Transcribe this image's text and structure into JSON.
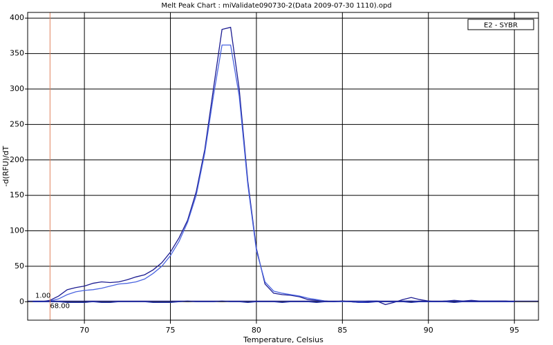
{
  "chart_data": {
    "type": "line",
    "title": "Melt Peak Chart : miValidate090730-2(Data 2009-07-30 1110).opd",
    "xlabel": "Temperature, Celsius",
    "ylabel": "-d(RFU)/dT",
    "legend": "E2 - SYBR",
    "legend_corner": "upper right",
    "grid": true,
    "xlim": [
      66.7,
      96.4
    ],
    "ylim": [
      -26,
      408
    ],
    "xticks": [
      70,
      75,
      80,
      85,
      90,
      95
    ],
    "yticks": [
      0,
      50,
      100,
      150,
      200,
      250,
      300,
      350,
      400
    ],
    "threshold": {
      "value": 1,
      "label": "1.00",
      "color": "#1c1c8c"
    },
    "marker": {
      "value": 68,
      "label": "68.00",
      "color": "#e0805a"
    },
    "x": [
      67,
      67.5,
      68,
      68.5,
      69,
      69.5,
      70,
      70.5,
      71,
      71.5,
      72,
      72.5,
      73,
      73.5,
      74,
      74.5,
      75,
      75.5,
      76,
      76.5,
      77,
      77.5,
      78,
      78.5,
      79,
      79.5,
      80,
      80.5,
      81,
      81.5,
      82,
      82.5,
      83,
      83.5,
      84,
      84.5,
      85,
      85.5,
      86,
      86.5,
      87,
      87.5,
      88,
      88.5,
      89,
      89.5,
      90,
      90.5,
      91,
      91.5,
      92,
      92.5,
      93,
      93.5,
      94,
      94.5,
      95
    ],
    "series": [
      {
        "color": "#1a1a90",
        "values": [
          0,
          0,
          2,
          8,
          17,
          20,
          22,
          26,
          28,
          27,
          28,
          31,
          35,
          38,
          45,
          55,
          70,
          90,
          115,
          155,
          215,
          300,
          384,
          387,
          300,
          170,
          75,
          25,
          12,
          10,
          9,
          7,
          3,
          2,
          1,
          0,
          1,
          0,
          -1,
          0,
          1,
          -4,
          -1,
          3,
          6,
          3,
          1,
          0,
          1,
          2,
          1,
          2,
          1,
          1,
          1,
          1,
          0
        ]
      },
      {
        "color": "#4a64e0",
        "values": [
          0,
          0,
          1,
          4,
          10,
          14,
          16,
          17,
          19,
          22,
          25,
          26,
          28,
          32,
          40,
          50,
          65,
          85,
          112,
          150,
          210,
          290,
          362,
          362,
          290,
          165,
          72,
          28,
          15,
          12,
          10,
          8,
          5,
          3,
          1,
          0,
          0,
          0,
          0,
          1,
          1,
          0,
          0,
          1,
          1,
          0,
          0,
          0,
          1,
          1,
          1,
          1,
          1,
          1,
          1,
          0,
          0
        ]
      },
      {
        "color": "#2030b0",
        "values": [
          0,
          0,
          0,
          0,
          -1,
          -1,
          -1,
          0,
          -1,
          -1,
          0,
          0,
          0,
          0,
          -1,
          -1,
          -1,
          0,
          1,
          0,
          0,
          0,
          1,
          0,
          0,
          -1,
          0,
          0,
          0,
          -1,
          0,
          0,
          0,
          -1,
          0,
          0,
          1,
          0,
          -1,
          -1,
          0,
          0,
          0,
          0,
          -1,
          0,
          0,
          0,
          0,
          -1,
          0,
          0,
          0,
          0,
          0,
          0,
          0
        ]
      }
    ]
  }
}
